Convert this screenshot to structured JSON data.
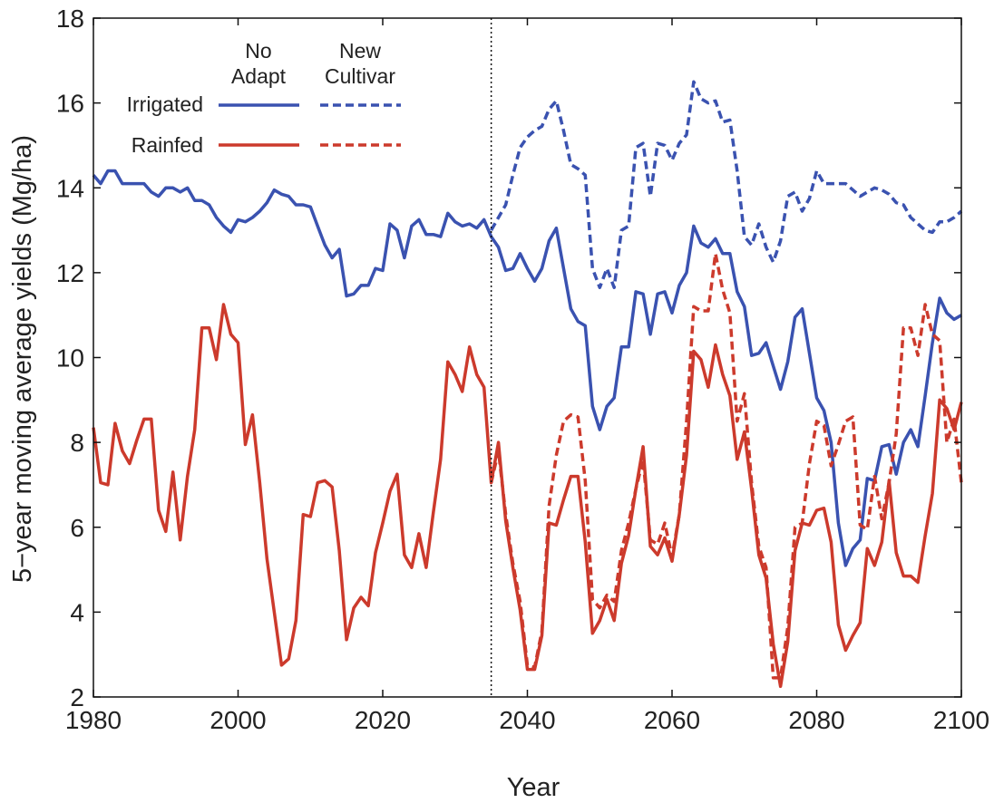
{
  "chart_data": {
    "type": "line",
    "xlabel": "Year",
    "ylabel": "5−year moving average yields (Mg/ha)",
    "xlim": [
      1980,
      2100
    ],
    "ylim": [
      2,
      18
    ],
    "xticks": [
      "1980",
      "2000",
      "2020",
      "2040",
      "2060",
      "2080",
      "2100"
    ],
    "yticks": [
      "2",
      "4",
      "6",
      "8",
      "10",
      "12",
      "14",
      "16",
      "18"
    ],
    "vline_year": 2035,
    "grid": false,
    "legend": {
      "position": "top-left",
      "col1_line1": "No",
      "col1_line2": "Adapt",
      "col2_line1": "New",
      "col2_line2": "Cultivar",
      "row1": "Irrigated",
      "row2": "Rainfed"
    },
    "colors": {
      "irrigated": "#3a52b0",
      "rainfed": "#cc3a2c"
    },
    "series": [
      {
        "name": "Irrigated No Adapt",
        "color": "#3a52b0",
        "dashed": false,
        "x": [
          1980,
          1981,
          1982,
          1983,
          1984,
          1985,
          1986,
          1987,
          1988,
          1989,
          1990,
          1991,
          1992,
          1993,
          1994,
          1995,
          1996,
          1997,
          1998,
          1999,
          2000,
          2001,
          2002,
          2003,
          2004,
          2005,
          2006,
          2007,
          2008,
          2009,
          2010,
          2011,
          2012,
          2013,
          2014,
          2015,
          2016,
          2017,
          2018,
          2019,
          2020,
          2021,
          2022,
          2023,
          2024,
          2025,
          2026,
          2027,
          2028,
          2029,
          2030,
          2031,
          2032,
          2033,
          2034,
          2035,
          2036,
          2037,
          2038,
          2039,
          2040,
          2041,
          2042,
          2043,
          2044,
          2045,
          2046,
          2047,
          2048,
          2049,
          2050,
          2051,
          2052,
          2053,
          2054,
          2055,
          2056,
          2057,
          2058,
          2059,
          2060,
          2061,
          2062,
          2063,
          2064,
          2065,
          2066,
          2067,
          2068,
          2069,
          2070,
          2071,
          2072,
          2073,
          2074,
          2075,
          2076,
          2077,
          2078,
          2079,
          2080,
          2081,
          2082,
          2083,
          2084,
          2085,
          2086,
          2087,
          2088,
          2089,
          2090,
          2091,
          2092,
          2093,
          2094,
          2095,
          2096,
          2097,
          2098,
          2099,
          2100
        ],
        "y": [
          14.3,
          14.1,
          14.4,
          14.4,
          14.1,
          14.1,
          14.1,
          14.1,
          13.9,
          13.8,
          14.0,
          14.0,
          13.9,
          14.0,
          13.7,
          13.7,
          13.6,
          13.3,
          13.1,
          12.95,
          13.25,
          13.2,
          13.3,
          13.45,
          13.65,
          13.95,
          13.85,
          13.8,
          13.6,
          13.6,
          13.55,
          13.1,
          12.65,
          12.35,
          12.55,
          11.45,
          11.5,
          11.7,
          11.7,
          12.1,
          12.05,
          13.15,
          13.0,
          12.35,
          13.1,
          13.25,
          12.9,
          12.9,
          12.85,
          13.4,
          13.2,
          13.1,
          13.15,
          13.05,
          13.25,
          12.85,
          12.6,
          12.05,
          12.1,
          12.45,
          12.1,
          11.8,
          12.1,
          12.75,
          13.05,
          12.1,
          11.15,
          10.85,
          10.75,
          8.85,
          8.3,
          8.85,
          9.05,
          10.25,
          10.25,
          11.55,
          11.5,
          10.55,
          11.5,
          11.55,
          11.05,
          11.7,
          12.0,
          13.1,
          12.7,
          12.6,
          12.8,
          12.45,
          12.45,
          11.55,
          11.2,
          10.05,
          10.1,
          10.35,
          9.8,
          9.25,
          9.9,
          10.95,
          11.15,
          10.1,
          9.05,
          8.75,
          8.0,
          6.1,
          5.1,
          5.5,
          5.7,
          7.15,
          7.1,
          7.9,
          7.95,
          7.25,
          8.0,
          8.3,
          7.9,
          9.1,
          10.35,
          11.4,
          11.05,
          10.9,
          11.0
        ]
      },
      {
        "name": "Irrigated New Cultivar",
        "color": "#3a52b0",
        "dashed": true,
        "x": [
          2035,
          2036,
          2037,
          2038,
          2039,
          2040,
          2041,
          2042,
          2043,
          2044,
          2045,
          2046,
          2047,
          2048,
          2049,
          2050,
          2051,
          2052,
          2053,
          2054,
          2055,
          2056,
          2057,
          2058,
          2059,
          2060,
          2061,
          2062,
          2063,
          2064,
          2065,
          2066,
          2067,
          2068,
          2069,
          2070,
          2071,
          2072,
          2073,
          2074,
          2075,
          2076,
          2077,
          2078,
          2079,
          2080,
          2081,
          2082,
          2083,
          2084,
          2085,
          2086,
          2087,
          2088,
          2089,
          2090,
          2091,
          2092,
          2093,
          2094,
          2095,
          2096,
          2097,
          2098,
          2099,
          2100
        ],
        "y": [
          13.0,
          13.3,
          13.6,
          14.3,
          14.95,
          15.2,
          15.35,
          15.45,
          15.85,
          16.05,
          15.35,
          14.55,
          14.45,
          14.3,
          12.1,
          11.65,
          12.1,
          11.65,
          13.0,
          13.1,
          14.95,
          15.05,
          13.8,
          15.05,
          15.0,
          14.65,
          15.05,
          15.25,
          16.5,
          16.1,
          16.0,
          16.05,
          15.55,
          15.6,
          14.4,
          12.85,
          12.65,
          13.15,
          12.6,
          12.25,
          12.75,
          13.8,
          13.9,
          13.45,
          13.75,
          14.4,
          14.1,
          14.1,
          14.1,
          14.1,
          13.95,
          13.8,
          13.9,
          14.0,
          13.95,
          13.85,
          13.65,
          13.6,
          13.3,
          13.15,
          13.0,
          12.95,
          13.2,
          13.2,
          13.3,
          13.45
        ]
      },
      {
        "name": "Rainfed No Adapt",
        "color": "#cc3a2c",
        "dashed": false,
        "x": [
          1980,
          1981,
          1982,
          1983,
          1984,
          1985,
          1986,
          1987,
          1988,
          1989,
          1990,
          1991,
          1992,
          1993,
          1994,
          1995,
          1996,
          1997,
          1998,
          1999,
          2000,
          2001,
          2002,
          2003,
          2004,
          2005,
          2006,
          2007,
          2008,
          2009,
          2010,
          2011,
          2012,
          2013,
          2014,
          2015,
          2016,
          2017,
          2018,
          2019,
          2020,
          2021,
          2022,
          2023,
          2024,
          2025,
          2026,
          2027,
          2028,
          2029,
          2030,
          2031,
          2032,
          2033,
          2034,
          2035,
          2036,
          2037,
          2038,
          2039,
          2040,
          2041,
          2042,
          2043,
          2044,
          2045,
          2046,
          2047,
          2048,
          2049,
          2050,
          2051,
          2052,
          2053,
          2054,
          2055,
          2056,
          2057,
          2058,
          2059,
          2060,
          2061,
          2062,
          2063,
          2064,
          2065,
          2066,
          2067,
          2068,
          2069,
          2070,
          2071,
          2072,
          2073,
          2074,
          2075,
          2076,
          2077,
          2078,
          2079,
          2080,
          2081,
          2082,
          2083,
          2084,
          2085,
          2086,
          2087,
          2088,
          2089,
          2090,
          2091,
          2092,
          2093,
          2094,
          2095,
          2096,
          2097,
          2098,
          2099,
          2100
        ],
        "y": [
          8.35,
          7.05,
          7.0,
          8.45,
          7.8,
          7.5,
          8.05,
          8.55,
          8.55,
          6.4,
          5.9,
          7.3,
          5.7,
          7.2,
          8.3,
          10.7,
          10.7,
          9.95,
          11.25,
          10.55,
          10.35,
          7.95,
          8.65,
          7.05,
          5.25,
          4.0,
          2.75,
          2.9,
          3.8,
          6.3,
          6.25,
          7.05,
          7.1,
          6.95,
          5.45,
          3.35,
          4.1,
          4.35,
          4.15,
          5.4,
          6.1,
          6.85,
          7.25,
          5.35,
          5.05,
          5.85,
          5.05,
          6.35,
          7.6,
          9.9,
          9.6,
          9.2,
          10.25,
          9.6,
          9.3,
          7.05,
          8.0,
          6.15,
          5.05,
          4.05,
          2.65,
          2.65,
          3.45,
          6.1,
          6.05,
          6.65,
          7.2,
          7.2,
          5.65,
          3.5,
          3.8,
          4.3,
          3.8,
          5.15,
          5.8,
          6.9,
          7.9,
          5.55,
          5.35,
          5.75,
          5.2,
          6.3,
          7.7,
          10.15,
          9.95,
          9.3,
          10.3,
          9.6,
          9.1,
          7.6,
          8.25,
          6.9,
          5.35,
          4.8,
          3.25,
          2.25,
          3.3,
          5.45,
          6.1,
          6.05,
          6.4,
          6.45,
          5.65,
          3.7,
          3.1,
          3.45,
          3.75,
          5.5,
          5.1,
          5.65,
          7.1,
          5.4,
          4.85,
          4.85,
          4.7,
          5.8,
          6.8,
          9.0,
          8.8,
          8.3,
          8.95
        ]
      },
      {
        "name": "Rainfed New Cultivar",
        "color": "#cc3a2c",
        "dashed": true,
        "x": [
          2035,
          2036,
          2037,
          2038,
          2039,
          2040,
          2041,
          2042,
          2043,
          2044,
          2045,
          2046,
          2047,
          2048,
          2049,
          2050,
          2051,
          2052,
          2053,
          2054,
          2055,
          2056,
          2057,
          2058,
          2059,
          2060,
          2061,
          2062,
          2063,
          2064,
          2065,
          2066,
          2067,
          2068,
          2069,
          2070,
          2071,
          2072,
          2073,
          2074,
          2075,
          2076,
          2077,
          2078,
          2079,
          2080,
          2081,
          2082,
          2083,
          2084,
          2085,
          2086,
          2087,
          2088,
          2089,
          2090,
          2091,
          2092,
          2093,
          2094,
          2095,
          2096,
          2097,
          2098,
          2099,
          2100
        ],
        "y": [
          7.05,
          7.8,
          6.3,
          5.15,
          4.25,
          2.75,
          2.7,
          3.55,
          6.5,
          7.7,
          8.5,
          8.65,
          8.6,
          7.1,
          4.3,
          4.1,
          4.4,
          4.25,
          5.45,
          6.1,
          6.9,
          7.6,
          5.7,
          5.6,
          6.1,
          5.3,
          6.3,
          8.5,
          11.2,
          11.1,
          11.1,
          12.45,
          11.6,
          11.05,
          8.5,
          9.15,
          7.05,
          5.55,
          5.05,
          2.45,
          2.45,
          3.65,
          6.0,
          6.1,
          7.5,
          8.5,
          8.4,
          7.45,
          7.95,
          8.5,
          8.6,
          6.05,
          5.95,
          7.2,
          6.2,
          7.05,
          8.2,
          10.7,
          10.7,
          10.05,
          11.25,
          10.55,
          10.4,
          8.0,
          8.55,
          7.05
        ]
      }
    ]
  }
}
